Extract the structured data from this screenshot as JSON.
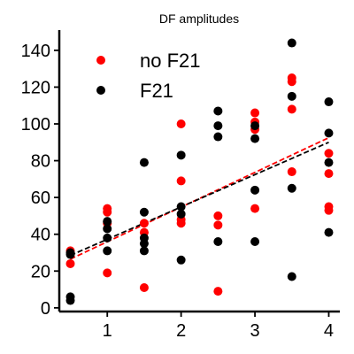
{
  "chart_data": {
    "type": "scatter",
    "title": "DF amplitudes",
    "xlabel": "",
    "ylabel": "",
    "xlim": [
      0.35,
      4.15
    ],
    "ylim": [
      -2,
      151
    ],
    "xticks": [
      1,
      2,
      3,
      4
    ],
    "yticks": [
      0,
      20,
      40,
      60,
      80,
      100,
      120,
      140
    ],
    "grid": false,
    "legend_position": "top-left",
    "series": [
      {
        "name": "no F21",
        "color": "#ff0000",
        "marker": "circle",
        "points": [
          {
            "x": 0.5,
            "y": 31
          },
          {
            "x": 0.5,
            "y": 24
          },
          {
            "x": 1.0,
            "y": 54
          },
          {
            "x": 1.0,
            "y": 52
          },
          {
            "x": 1.0,
            "y": 46
          },
          {
            "x": 1.0,
            "y": 19
          },
          {
            "x": 1.5,
            "y": 46
          },
          {
            "x": 1.5,
            "y": 41
          },
          {
            "x": 1.5,
            "y": 11
          },
          {
            "x": 2.0,
            "y": 100
          },
          {
            "x": 2.0,
            "y": 69
          },
          {
            "x": 2.0,
            "y": 48
          },
          {
            "x": 2.0,
            "y": 46
          },
          {
            "x": 2.5,
            "y": 50
          },
          {
            "x": 2.5,
            "y": 45
          },
          {
            "x": 2.5,
            "y": 9
          },
          {
            "x": 3.0,
            "y": 106
          },
          {
            "x": 3.0,
            "y": 101
          },
          {
            "x": 3.0,
            "y": 97
          },
          {
            "x": 3.0,
            "y": 54
          },
          {
            "x": 3.5,
            "y": 125
          },
          {
            "x": 3.5,
            "y": 123
          },
          {
            "x": 3.5,
            "y": 108
          },
          {
            "x": 3.5,
            "y": 74
          },
          {
            "x": 4.0,
            "y": 84
          },
          {
            "x": 4.0,
            "y": 73
          },
          {
            "x": 4.0,
            "y": 55
          },
          {
            "x": 4.0,
            "y": 53
          }
        ],
        "trend": {
          "x": [
            0.5,
            4.0
          ],
          "y": [
            26.5,
            92.5
          ]
        }
      },
      {
        "name": "F21",
        "color": "#000000",
        "marker": "circle",
        "points": [
          {
            "x": 0.5,
            "y": 30
          },
          {
            "x": 0.5,
            "y": 29
          },
          {
            "x": 0.5,
            "y": 6
          },
          {
            "x": 0.5,
            "y": 4
          },
          {
            "x": 1.0,
            "y": 47
          },
          {
            "x": 1.0,
            "y": 43
          },
          {
            "x": 1.0,
            "y": 38
          },
          {
            "x": 1.0,
            "y": 31
          },
          {
            "x": 1.5,
            "y": 79
          },
          {
            "x": 1.5,
            "y": 52
          },
          {
            "x": 1.5,
            "y": 38
          },
          {
            "x": 1.5,
            "y": 35
          },
          {
            "x": 1.5,
            "y": 31
          },
          {
            "x": 2.0,
            "y": 83
          },
          {
            "x": 2.0,
            "y": 55
          },
          {
            "x": 2.0,
            "y": 51
          },
          {
            "x": 2.0,
            "y": 26
          },
          {
            "x": 2.5,
            "y": 107
          },
          {
            "x": 2.5,
            "y": 99
          },
          {
            "x": 2.5,
            "y": 93
          },
          {
            "x": 2.5,
            "y": 36
          },
          {
            "x": 3.0,
            "y": 99
          },
          {
            "x": 3.0,
            "y": 92
          },
          {
            "x": 3.0,
            "y": 64
          },
          {
            "x": 3.0,
            "y": 36
          },
          {
            "x": 3.5,
            "y": 144
          },
          {
            "x": 3.5,
            "y": 115
          },
          {
            "x": 3.5,
            "y": 65
          },
          {
            "x": 3.5,
            "y": 17
          },
          {
            "x": 4.0,
            "y": 112
          },
          {
            "x": 4.0,
            "y": 95
          },
          {
            "x": 4.0,
            "y": 79
          },
          {
            "x": 4.0,
            "y": 41
          }
        ],
        "trend": {
          "x": [
            0.5,
            4.0
          ],
          "y": [
            28.5,
            90.0
          ]
        }
      }
    ]
  }
}
